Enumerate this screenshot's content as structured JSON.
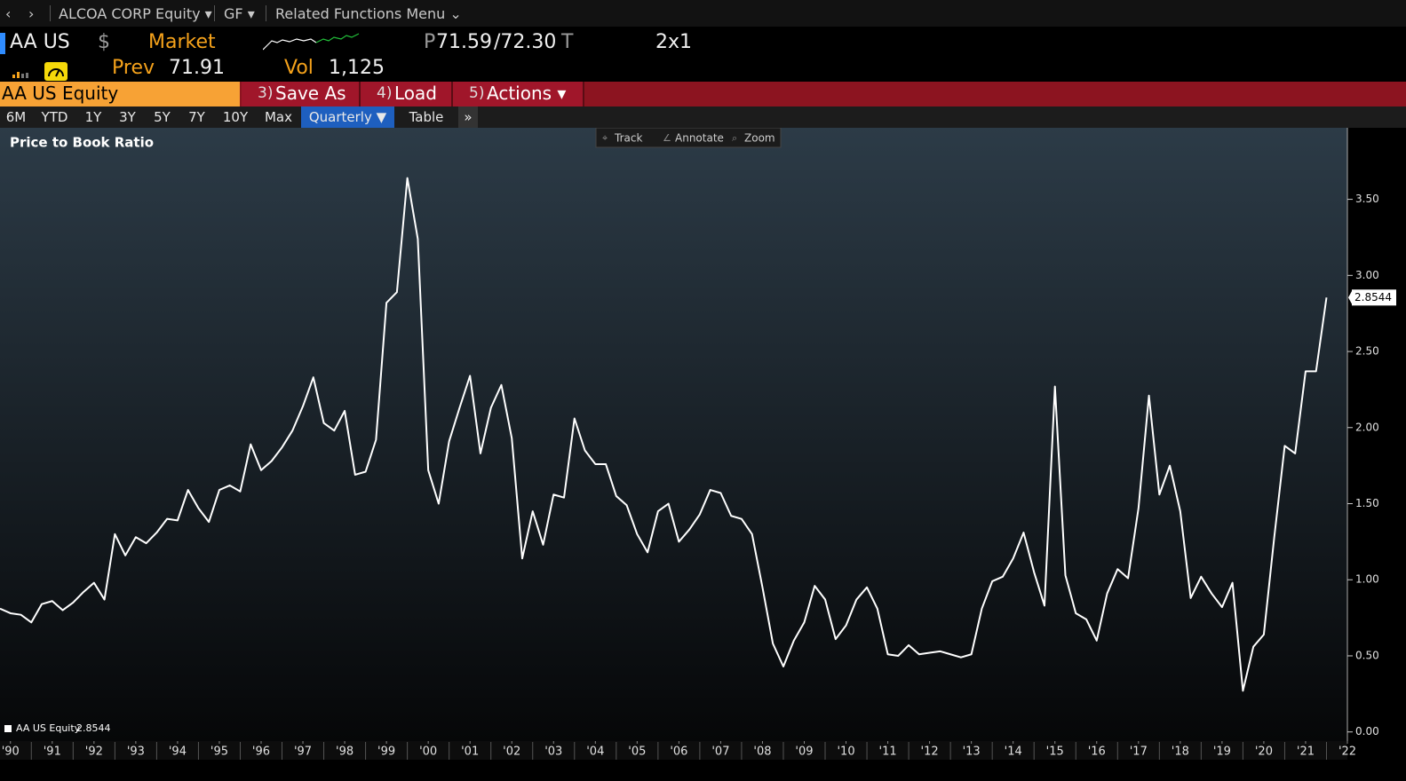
{
  "nav": {
    "security": "ALCOA CORP Equity ▾",
    "function": "GF ▾",
    "related": "Related Functions Menu ⌄"
  },
  "header": {
    "ticker": "AA US",
    "currency": "$",
    "market": "Market",
    "bid_prefix": "P",
    "bid": "71.59",
    "ask": "/72.30",
    "ask_suffix": "T",
    "size": "2x1",
    "prev_label": "Prev",
    "prev": "71.91",
    "vol_label": "Vol",
    "vol": "1,125"
  },
  "toolbar": {
    "security": "AA US Equity",
    "buttons": [
      {
        "key": "3)",
        "label": "Save As"
      },
      {
        "key": "4)",
        "label": "Load"
      },
      {
        "key": "5)",
        "label": "Actions ▾"
      }
    ]
  },
  "tabs": [
    "6M",
    "YTD",
    "1Y",
    "3Y",
    "5Y",
    "7Y",
    "10Y",
    "Max",
    "Quarterly ▼",
    "Table",
    "»"
  ],
  "chart_tools": [
    "Track",
    "Annotate",
    "Zoom"
  ],
  "chart_data": {
    "type": "line",
    "title": "Price to Book Ratio",
    "x": [
      1989.75,
      1990,
      1990.25,
      1990.5,
      1990.75,
      1991,
      1991.25,
      1991.5,
      1991.75,
      1992,
      1992.25,
      1992.5,
      1992.75,
      1993,
      1993.25,
      1993.5,
      1993.75,
      1994,
      1994.25,
      1994.5,
      1994.75,
      1995,
      1995.25,
      1995.5,
      1995.75,
      1996,
      1996.25,
      1996.5,
      1996.75,
      1997,
      1997.25,
      1997.5,
      1997.75,
      1998,
      1998.25,
      1998.5,
      1998.75,
      1999,
      1999.25,
      1999.5,
      1999.75,
      2000,
      2000.25,
      2000.5,
      2000.75,
      2001,
      2001.25,
      2001.5,
      2001.75,
      2002,
      2002.25,
      2002.5,
      2002.75,
      2003,
      2003.25,
      2003.5,
      2003.75,
      2004,
      2004.25,
      2004.5,
      2004.75,
      2005,
      2005.25,
      2005.5,
      2005.75,
      2006,
      2006.25,
      2006.5,
      2006.75,
      2007,
      2007.25,
      2007.5,
      2007.75,
      2008,
      2008.25,
      2008.5,
      2008.75,
      2009,
      2009.25,
      2009.5,
      2009.75,
      2010,
      2010.25,
      2010.5,
      2010.75,
      2011,
      2011.25,
      2011.5,
      2011.75,
      2012,
      2012.25,
      2012.5,
      2012.75,
      2013,
      2013.25,
      2013.5,
      2013.75,
      2014,
      2014.25,
      2014.5,
      2014.75,
      2015,
      2015.25,
      2015.5,
      2015.75,
      2016,
      2016.25,
      2016.5,
      2016.75,
      2017,
      2017.25,
      2017.5,
      2017.75,
      2018,
      2018.25,
      2018.5,
      2018.75,
      2019,
      2019.25,
      2019.5,
      2019.75,
      2020,
      2020.25,
      2020.5,
      2020.75,
      2021,
      2021.25,
      2021.5
    ],
    "series": [
      {
        "name": "AA US Equity",
        "color": "#ffffff",
        "values": [
          0.81,
          0.78,
          0.77,
          0.72,
          0.84,
          0.86,
          0.8,
          0.85,
          0.92,
          0.98,
          0.87,
          1.3,
          1.16,
          1.28,
          1.24,
          1.31,
          1.4,
          1.39,
          1.59,
          1.47,
          1.38,
          1.59,
          1.62,
          1.58,
          1.89,
          1.72,
          1.78,
          1.87,
          1.98,
          2.14,
          2.33,
          2.03,
          1.98,
          2.11,
          1.69,
          1.71,
          1.92,
          2.82,
          2.89,
          3.64,
          3.24,
          1.72,
          1.5,
          1.91,
          2.13,
          2.34,
          1.83,
          2.13,
          2.28,
          1.93,
          1.14,
          1.45,
          1.23,
          1.56,
          1.54,
          2.06,
          1.85,
          1.76,
          1.76,
          1.55,
          1.49,
          1.3,
          1.18,
          1.45,
          1.5,
          1.25,
          1.33,
          1.43,
          1.59,
          1.57,
          1.42,
          1.4,
          1.3,
          0.95,
          0.58,
          0.43,
          0.6,
          0.72,
          0.96,
          0.87,
          0.61,
          0.7,
          0.87,
          0.95,
          0.81,
          0.51,
          0.5,
          0.57,
          0.51,
          0.52,
          0.53,
          0.51,
          0.49,
          0.51,
          0.81,
          0.99,
          1.02,
          1.14,
          1.31,
          1.05,
          0.83,
          2.27,
          1.03,
          0.78,
          0.74,
          0.6,
          0.91,
          1.07,
          1.01,
          1.47,
          2.21,
          1.56,
          1.75,
          1.45,
          0.88,
          1.02,
          0.91,
          0.82,
          0.98,
          0.27,
          0.56,
          0.64,
          1.28,
          1.88,
          1.83,
          2.37,
          2.37,
          2.8544
        ]
      }
    ],
    "xlim": [
      1989.75,
      2022
    ],
    "xticks": [
      {
        "value": 1990,
        "label": "'90"
      },
      {
        "value": 1991,
        "label": "'91"
      },
      {
        "value": 1992,
        "label": "'92"
      },
      {
        "value": 1993,
        "label": "'93"
      },
      {
        "value": 1994,
        "label": "'94"
      },
      {
        "value": 1995,
        "label": "'95"
      },
      {
        "value": 1996,
        "label": "'96"
      },
      {
        "value": 1997,
        "label": "'97"
      },
      {
        "value": 1998,
        "label": "'98"
      },
      {
        "value": 1999,
        "label": "'99"
      },
      {
        "value": 2000,
        "label": "'00"
      },
      {
        "value": 2001,
        "label": "'01"
      },
      {
        "value": 2002,
        "label": "'02"
      },
      {
        "value": 2003,
        "label": "'03"
      },
      {
        "value": 2004,
        "label": "'04"
      },
      {
        "value": 2005,
        "label": "'05"
      },
      {
        "value": 2006,
        "label": "'06"
      },
      {
        "value": 2007,
        "label": "'07"
      },
      {
        "value": 2008,
        "label": "'08"
      },
      {
        "value": 2009,
        "label": "'09"
      },
      {
        "value": 2010,
        "label": "'10"
      },
      {
        "value": 2011,
        "label": "'11"
      },
      {
        "value": 2012,
        "label": "'12"
      },
      {
        "value": 2013,
        "label": "'13"
      },
      {
        "value": 2014,
        "label": "'14"
      },
      {
        "value": 2015,
        "label": "'15"
      },
      {
        "value": 2016,
        "label": "'16"
      },
      {
        "value": 2017,
        "label": "'17"
      },
      {
        "value": 2018,
        "label": "'18"
      },
      {
        "value": 2019,
        "label": "'19"
      },
      {
        "value": 2020,
        "label": "'20"
      },
      {
        "value": 2021,
        "label": "'21"
      },
      {
        "value": 2022,
        "label": "'22"
      }
    ],
    "ylim": [
      -0.06,
      3.97
    ],
    "yticks": [
      {
        "value": 0,
        "label": "0.00"
      },
      {
        "value": 0.5,
        "label": "0.50"
      },
      {
        "value": 1,
        "label": "1.00"
      },
      {
        "value": 1.5,
        "label": "1.50"
      },
      {
        "value": 2,
        "label": "2.00"
      },
      {
        "value": 2.5,
        "label": "2.50"
      },
      {
        "value": 3,
        "label": "3.00"
      },
      {
        "value": 3.5,
        "label": "3.50"
      }
    ],
    "y_axis_side": "right",
    "grid": false,
    "legend": "bottom-left"
  }
}
